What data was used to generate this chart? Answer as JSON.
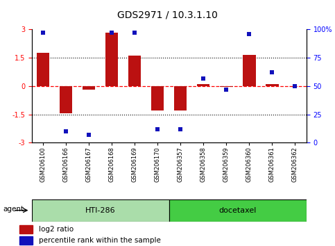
{
  "title": "GDS2971 / 10.3.1.10",
  "samples": [
    "GSM206100",
    "GSM206166",
    "GSM206167",
    "GSM206168",
    "GSM206169",
    "GSM206170",
    "GSM206357",
    "GSM206358",
    "GSM206359",
    "GSM206360",
    "GSM206361",
    "GSM206362"
  ],
  "log2_ratio": [
    1.75,
    -1.45,
    -0.2,
    2.85,
    1.6,
    -1.3,
    -1.3,
    0.1,
    -0.05,
    1.65,
    0.1,
    0.0
  ],
  "percentile": [
    97,
    10,
    7,
    97,
    97,
    12,
    12,
    57,
    47,
    96,
    62,
    50
  ],
  "ylim_left": [
    -3,
    3
  ],
  "bar_color": "#BB1111",
  "dot_color": "#1111BB",
  "hti_color": "#AADDAA",
  "doc_color": "#44CC44",
  "legend_items": [
    {
      "label": "log2 ratio",
      "color": "#BB1111"
    },
    {
      "label": "percentile rank within the sample",
      "color": "#1111BB"
    }
  ]
}
